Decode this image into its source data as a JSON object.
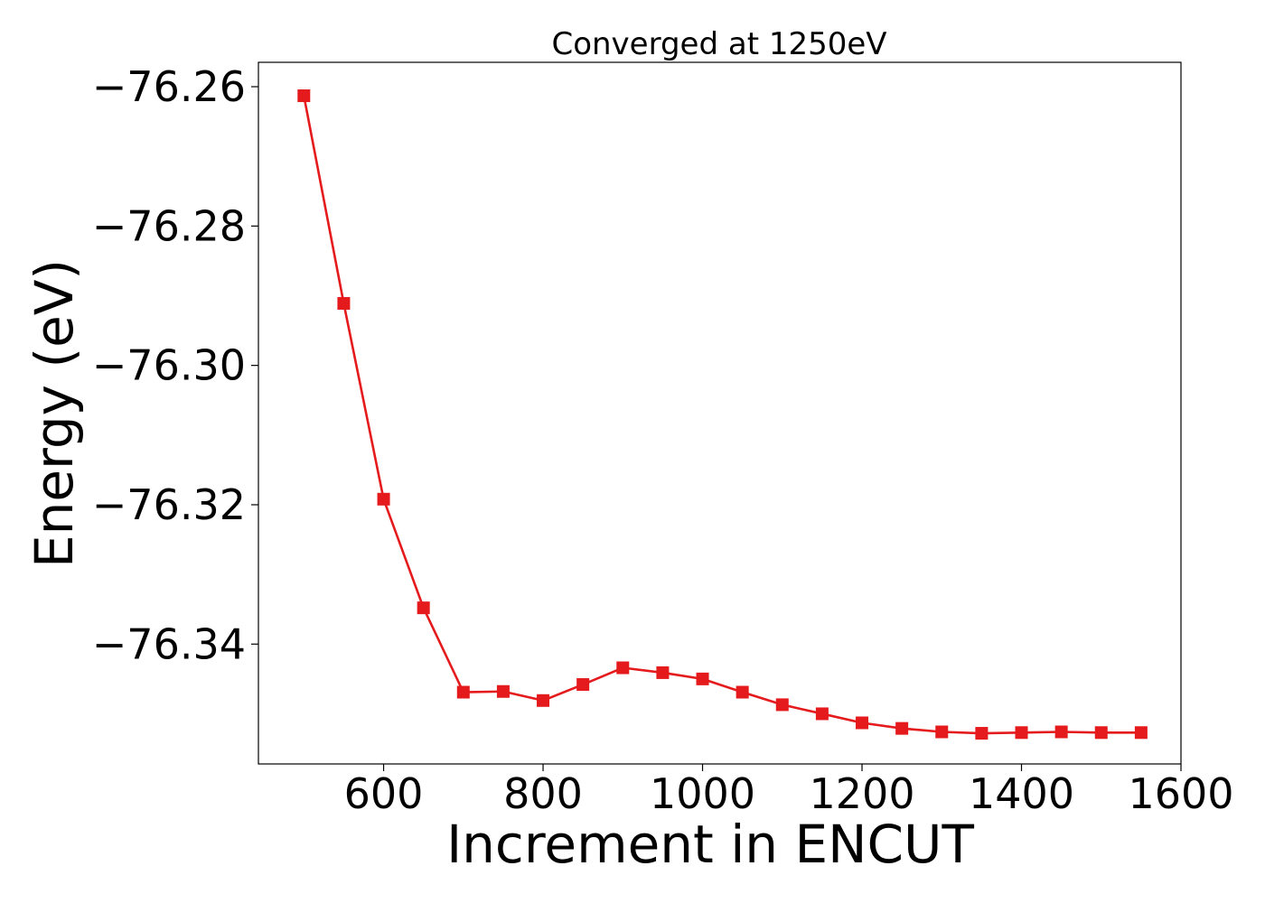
{
  "chart_data": {
    "type": "line",
    "title": "Converged at 1250eV",
    "xlabel": "Increment in ENCUT",
    "ylabel": "Energy (eV)",
    "xlim": [
      443,
      1600
    ],
    "ylim": [
      -76.3572,
      -76.2565
    ],
    "x_ticks": [
      600,
      800,
      1000,
      1200,
      1400,
      1600
    ],
    "x_tick_labels": [
      "600",
      "800",
      "1000",
      "1200",
      "1400",
      "1600"
    ],
    "y_ticks": [
      -76.26,
      -76.28,
      -76.3,
      -76.32,
      -76.34
    ],
    "y_tick_labels": [
      "−76.26",
      "−76.28",
      "−76.30",
      "−76.32",
      "−76.34"
    ],
    "grid": false,
    "legend": "none",
    "series": [
      {
        "color": "#e41a1c",
        "marker": "square",
        "x": [
          500,
          550,
          600,
          650,
          700,
          750,
          800,
          850,
          900,
          950,
          1000,
          1050,
          1100,
          1150,
          1200,
          1250,
          1300,
          1350,
          1400,
          1450,
          1500,
          1550
        ],
        "y": [
          -76.2613,
          -76.2911,
          -76.3192,
          -76.3348,
          -76.3469,
          -76.3468,
          -76.3481,
          -76.3458,
          -76.3434,
          -76.3441,
          -76.345,
          -76.3469,
          -76.3487,
          -76.35,
          -76.3513,
          -76.3521,
          -76.3526,
          -76.3528,
          -76.3527,
          -76.3526,
          -76.3527,
          -76.3527
        ]
      }
    ]
  }
}
